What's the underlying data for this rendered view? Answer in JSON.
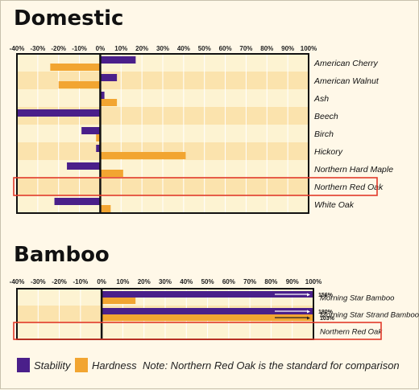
{
  "colors": {
    "stability": "#4a1f8a",
    "hardness": "#f2a531",
    "row_light": "#fdf3d2",
    "row_dark": "#fbe3ad",
    "highlight": "#e13a2a"
  },
  "chart_data": [
    {
      "type": "bar",
      "orientation": "horizontal",
      "title": "Domestic",
      "x_ticks": [
        "-40%",
        "-30%",
        "-20%",
        "-10%",
        "0%",
        "10%",
        "20%",
        "30%",
        "40%",
        "50%",
        "60%",
        "70%",
        "80%",
        "90%",
        "100%"
      ],
      "xlim": [
        -40,
        100
      ],
      "grid": true,
      "categories": [
        "American Cherry",
        "American Walnut",
        "Ash",
        "Beech",
        "Birch",
        "Hickory",
        "Northern Hard Maple",
        "Northern Red Oak",
        "White Oak"
      ],
      "series": [
        {
          "name": "Stability",
          "values": [
            17,
            8,
            2,
            -40,
            -9,
            -2,
            -16,
            0,
            -22
          ]
        },
        {
          "name": "Hardness",
          "values": [
            -24,
            -20,
            8,
            0,
            -2,
            41,
            11,
            0,
            5
          ]
        }
      ],
      "highlighted_category": "Northern Red Oak"
    },
    {
      "type": "bar",
      "orientation": "horizontal",
      "title": "Bamboo",
      "x_ticks": [
        "-40%",
        "-30%",
        "-20%",
        "-10%",
        "0%",
        "10%",
        "20%",
        "30%",
        "40%",
        "50%",
        "60%",
        "70%",
        "80%",
        "90%",
        "100%"
      ],
      "xlim": [
        -40,
        100
      ],
      "grid": true,
      "categories": [
        "Morning Star Bamboo",
        "Morning Star Strand Bamboo",
        "Northern Red Oak"
      ],
      "series": [
        {
          "name": "Stability",
          "values": [
            156,
            180,
            0
          ],
          "data_labels": [
            "156%",
            "180%",
            ""
          ]
        },
        {
          "name": "Hardness",
          "values": [
            16,
            103,
            0
          ],
          "data_labels": [
            "",
            "103%",
            ""
          ]
        }
      ],
      "highlighted_category": "Northern Red Oak"
    }
  ],
  "legend": {
    "stability_label": "Stability",
    "hardness_label": "Hardness",
    "note": "Note: Northern Red Oak is the standard for comparison"
  }
}
